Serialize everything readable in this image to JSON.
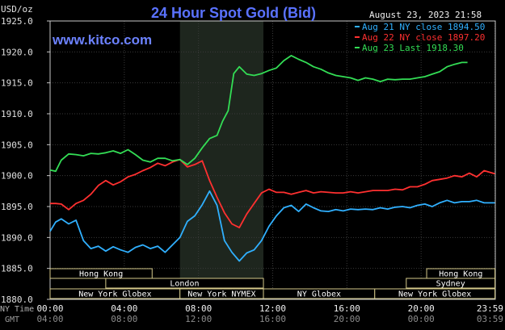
{
  "chart_data": {
    "type": "line",
    "title": "24 Hour Spot Gold (Bid)",
    "ylabel": "USD/oz",
    "source": "www.kitco.com",
    "timestamp": "August 23, 2023 21:58",
    "ylim": [
      1880,
      1925
    ],
    "xlim": [
      0,
      24
    ],
    "yticks": [
      {
        "value": 1880,
        "label": "1880.0"
      },
      {
        "value": 1885,
        "label": "1885.0"
      },
      {
        "value": 1890,
        "label": "1890.0"
      },
      {
        "value": 1895,
        "label": "1895.0"
      },
      {
        "value": 1900,
        "label": "1900.0"
      },
      {
        "value": 1905,
        "label": "1905.0"
      },
      {
        "value": 1910,
        "label": "1910.0"
      },
      {
        "value": 1915,
        "label": "1915.0"
      },
      {
        "value": 1920,
        "label": "1920.0"
      },
      {
        "value": 1925,
        "label": "1925.0"
      }
    ],
    "xticks": [
      {
        "value": 0,
        "ny": "00:00",
        "gmt": "04:00"
      },
      {
        "value": 4,
        "ny": "04:00",
        "gmt": "08:00"
      },
      {
        "value": 8,
        "ny": "08:00",
        "gmt": "12:00"
      },
      {
        "value": 12,
        "ny": "12:00",
        "gmt": "16:00"
      },
      {
        "value": 16,
        "ny": "16:00",
        "gmt": "20:00"
      },
      {
        "value": 20,
        "ny": "20:00",
        "gmt": "00:00"
      },
      {
        "value": 23.98,
        "ny": "23:59",
        "gmt": "03:59"
      }
    ],
    "x_row_labels": {
      "ny": "NY Time",
      "gmt": "GMT"
    },
    "highlight_range": [
      7,
      11.5
    ],
    "grid": true,
    "legend_position": "top-right",
    "series": [
      {
        "name": "Aug 21 NY close 1894.50",
        "color": "#30b0ff",
        "x": [
          0,
          0.3,
          0.6,
          1,
          1.4,
          1.8,
          2.2,
          2.6,
          3,
          3.4,
          3.8,
          4.2,
          4.6,
          5,
          5.4,
          5.8,
          6.2,
          6.6,
          7,
          7.4,
          7.8,
          8.2,
          8.6,
          9,
          9.4,
          9.8,
          10.2,
          10.6,
          11,
          11.4,
          11.8,
          12.2,
          12.6,
          13,
          13.4,
          13.8,
          14.2,
          14.6,
          15,
          15.4,
          15.8,
          16.2,
          16.6,
          17,
          17.4,
          17.8,
          18.2,
          18.6,
          19,
          19.4,
          19.8,
          20.2,
          20.6,
          21,
          21.4,
          21.8,
          22.2,
          22.6,
          23,
          23.4,
          23.98
        ],
        "y": [
          1891,
          1892.5,
          1893,
          1892.2,
          1892.8,
          1889.5,
          1888.2,
          1888.6,
          1887.8,
          1888.5,
          1888,
          1887.6,
          1888.4,
          1888.8,
          1888.2,
          1888.6,
          1887.6,
          1888.8,
          1890,
          1892.6,
          1893.5,
          1895.3,
          1897.5,
          1895.2,
          1889.5,
          1887.6,
          1886.2,
          1887.5,
          1888,
          1889.5,
          1891.8,
          1893.5,
          1894.8,
          1895.2,
          1894.2,
          1895.4,
          1894.8,
          1894.3,
          1894.2,
          1894.5,
          1894.3,
          1894.6,
          1894.5,
          1894.6,
          1894.5,
          1894.8,
          1894.6,
          1894.9,
          1895,
          1894.8,
          1895.2,
          1895.4,
          1895,
          1895.6,
          1896,
          1895.6,
          1895.8,
          1895.8,
          1896,
          1895.6,
          1895.6
        ]
      },
      {
        "name": "Aug 22 NY close 1897.20",
        "color": "#ff3030",
        "x": [
          0,
          0.3,
          0.6,
          1,
          1.4,
          1.8,
          2.2,
          2.6,
          3,
          3.4,
          3.8,
          4.2,
          4.6,
          5,
          5.4,
          5.8,
          6.2,
          6.6,
          7,
          7.4,
          7.8,
          8.2,
          8.6,
          9,
          9.4,
          9.8,
          10.2,
          10.6,
          11,
          11.4,
          11.8,
          12.2,
          12.6,
          13,
          13.4,
          13.8,
          14.2,
          14.6,
          15,
          15.4,
          15.8,
          16.2,
          16.6,
          17,
          17.4,
          17.8,
          18.2,
          18.6,
          19,
          19.4,
          19.8,
          20.2,
          20.6,
          21,
          21.4,
          21.8,
          22.2,
          22.6,
          23,
          23.4,
          23.98
        ],
        "y": [
          1895.5,
          1895.5,
          1895.4,
          1894.5,
          1895.5,
          1896,
          1897,
          1898.4,
          1899.2,
          1898.5,
          1899,
          1899.8,
          1900.2,
          1900.8,
          1901.3,
          1902,
          1901.6,
          1902.2,
          1902.6,
          1901.4,
          1901.8,
          1902.4,
          1899.2,
          1896.5,
          1894,
          1892.2,
          1891.6,
          1893.8,
          1895.5,
          1897.2,
          1897.8,
          1897.3,
          1897.3,
          1897,
          1897.3,
          1897.6,
          1897.2,
          1897.4,
          1897.3,
          1897.2,
          1897.2,
          1897.4,
          1897.2,
          1897.4,
          1897.6,
          1897.6,
          1897.6,
          1897.8,
          1897.7,
          1898.2,
          1898.2,
          1898.6,
          1899.2,
          1899.4,
          1899.6,
          1900,
          1899.8,
          1900.4,
          1899.8,
          1900.8,
          1900.3
        ]
      },
      {
        "name": "Aug 23 Last 1918.30",
        "color": "#33dd55",
        "x": [
          0,
          0.3,
          0.6,
          1,
          1.4,
          1.8,
          2.2,
          2.6,
          3,
          3.4,
          3.8,
          4.2,
          4.6,
          5,
          5.4,
          5.8,
          6.2,
          6.6,
          7,
          7.4,
          7.8,
          8.2,
          8.6,
          9,
          9.3,
          9.6,
          9.9,
          10.2,
          10.6,
          11,
          11.4,
          11.8,
          12.2,
          12.6,
          13,
          13.4,
          13.8,
          14.2,
          14.6,
          15,
          15.4,
          15.8,
          16.2,
          16.6,
          17,
          17.4,
          17.8,
          18.2,
          18.6,
          19,
          19.4,
          19.8,
          20.2,
          20.6,
          21,
          21.4,
          21.8,
          22.2,
          22.5
        ],
        "y": [
          1900.9,
          1900.7,
          1902.5,
          1903.5,
          1903.4,
          1903.2,
          1903.6,
          1903.5,
          1903.7,
          1904,
          1903.6,
          1904.2,
          1903.4,
          1902.5,
          1902.2,
          1902.8,
          1902.8,
          1902.4,
          1902.6,
          1901.8,
          1902.8,
          1904.5,
          1906,
          1906.5,
          1908.8,
          1910.5,
          1916.5,
          1917.6,
          1916.4,
          1916.2,
          1916.5,
          1917,
          1917.4,
          1918.6,
          1919.4,
          1918.8,
          1918.3,
          1917.6,
          1917.2,
          1916.6,
          1916.2,
          1916,
          1915.8,
          1915.4,
          1915.8,
          1915.6,
          1915.2,
          1915.6,
          1915.5,
          1915.6,
          1915.6,
          1915.8,
          1916,
          1916.4,
          1916.8,
          1917.6,
          1918,
          1918.3,
          1918.3
        ]
      }
    ],
    "sessions": [
      {
        "name": "Hong Kong",
        "row": 0,
        "start": 0,
        "end": 5.5
      },
      {
        "name": "Hong Kong",
        "row": 0,
        "start": 20.3,
        "end": 23.98
      },
      {
        "name": "London",
        "row": 1,
        "start": 3,
        "end": 11.5
      },
      {
        "name": "Sydney",
        "row": 1,
        "start": 19.2,
        "end": 23.98
      },
      {
        "name": "New York Globex",
        "row": 2,
        "start": 0,
        "end": 7
      },
      {
        "name": "New York NYMEX",
        "row": 2,
        "start": 7,
        "end": 11.5
      },
      {
        "name": "NY Globex",
        "row": 2,
        "start": 11.5,
        "end": 17.5
      },
      {
        "name": "New York Globex",
        "row": 2,
        "start": 17.5,
        "end": 23.98
      }
    ]
  }
}
